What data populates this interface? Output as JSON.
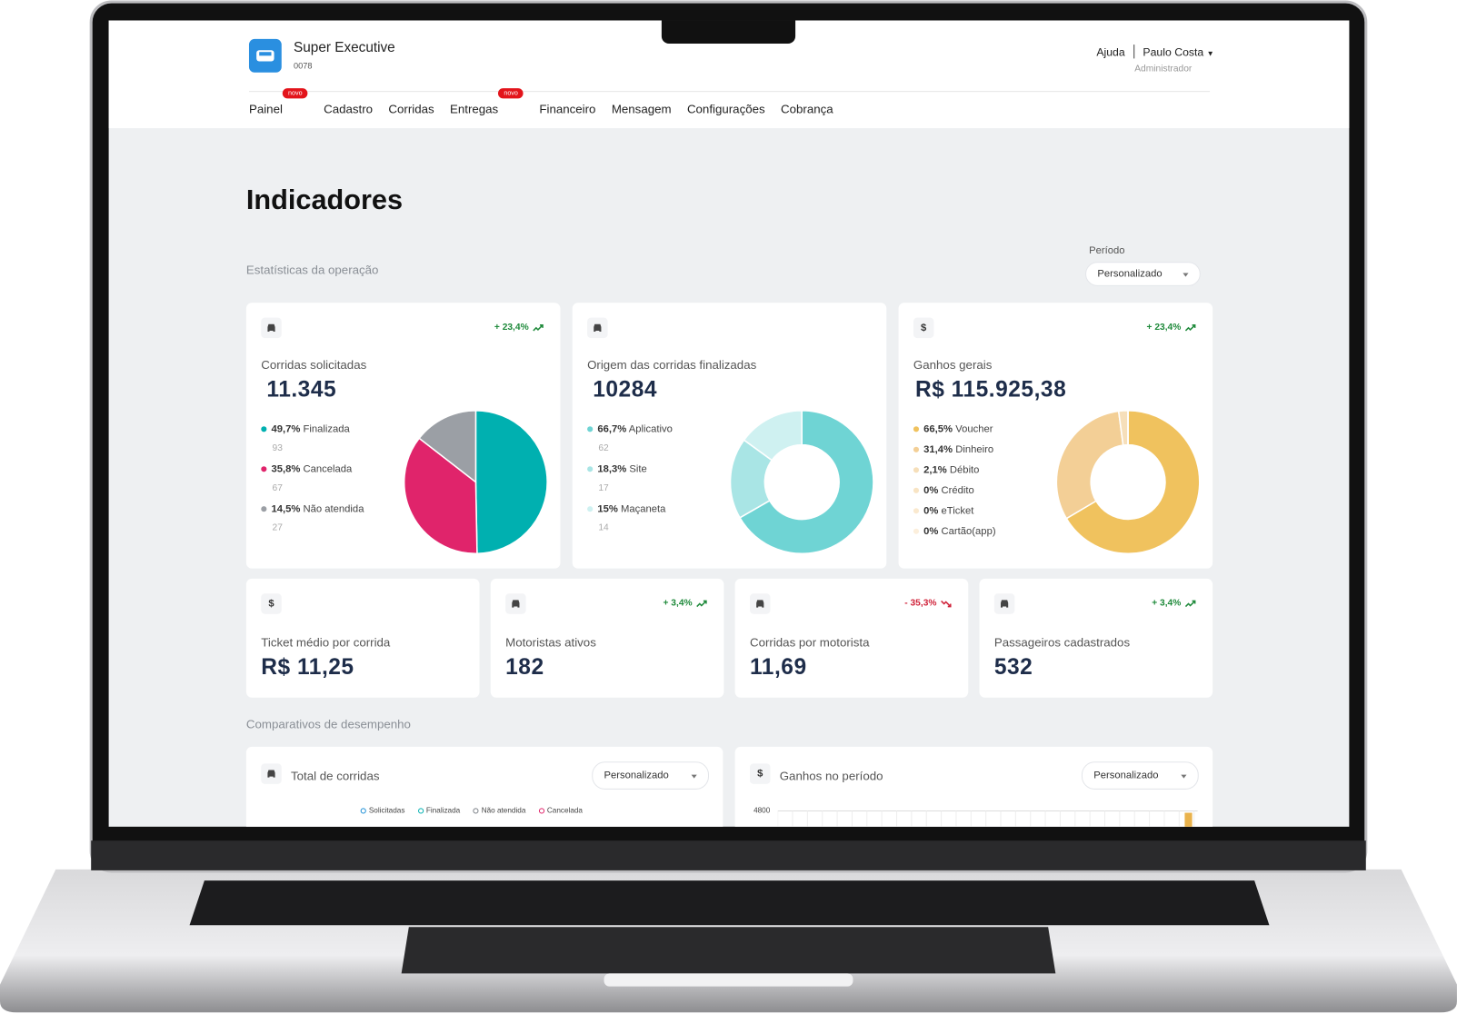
{
  "header": {
    "company": "Super Executive",
    "code": "0078",
    "help": "Ajuda",
    "user": "Paulo Costa",
    "role": "Administrador"
  },
  "nav": [
    {
      "label": "Painel",
      "badge": "novo"
    },
    {
      "label": "Cadastro"
    },
    {
      "label": "Corridas"
    },
    {
      "label": "Entregas",
      "badge": "novo"
    },
    {
      "label": "Financeiro"
    },
    {
      "label": "Mensagem"
    },
    {
      "label": "Configurações"
    },
    {
      "label": "Cobrança"
    }
  ],
  "page_title": "Indicadores",
  "section_stats": "Estatísticas da operação",
  "period": {
    "label": "Período",
    "value": "Personalizado"
  },
  "cards": [
    {
      "trend": {
        "label": "+ 23,4%",
        "color": "#1f8a3b"
      },
      "title": "Corridas solicitadas",
      "value": "11.345",
      "chart": {
        "type": "pie",
        "items": [
          {
            "percent": {
              "value": 49.7,
              "label": "49,7%"
            },
            "name": "Finalizada",
            "count": "93",
            "color": "#00b0b0"
          },
          {
            "percent": {
              "value": 35.8,
              "label": "35,8%"
            },
            "name": "Cancelada",
            "count": "67",
            "color": "#e0246b"
          },
          {
            "percent": {
              "value": 14.5,
              "label": "14,5%"
            },
            "name": "Não atendida",
            "count": "27",
            "color": "#9b9fa5"
          }
        ]
      }
    },
    {
      "title": "Origem das corridas finalizadas",
      "value": "10284",
      "chart": {
        "type": "donut",
        "items": [
          {
            "percent": {
              "value": 66.7,
              "label": "66,7%"
            },
            "name": "Aplicativo",
            "count": "62",
            "color": "#6fd4d4"
          },
          {
            "percent": {
              "value": 18.3,
              "label": "18,3%"
            },
            "name": "Site",
            "count": "17",
            "color": "#a9e5e5"
          },
          {
            "percent": {
              "value": 15,
              "label": "15%"
            },
            "name": "Maçaneta",
            "count": "14",
            "color": "#cff1f1"
          }
        ]
      }
    },
    {
      "symbol": "$",
      "trend": {
        "label": "+ 23,4%",
        "color": "#1f8a3b"
      },
      "title": "Ganhos gerais",
      "value": "R$ 115.925,38",
      "chart": {
        "type": "donut",
        "items": [
          {
            "percent": {
              "value": 66.5,
              "label": "66,5%"
            },
            "name": "Voucher",
            "color": "#f0c25e"
          },
          {
            "percent": {
              "value": 31.4,
              "label": "31,4%"
            },
            "name": "Dinheiro",
            "color": "#f3cf96"
          },
          {
            "percent": {
              "value": 2.1,
              "label": "2,1%"
            },
            "name": "Débito",
            "color": "#f6dfba"
          },
          {
            "percent": {
              "value": 0,
              "label": "0%"
            },
            "name": "Crédito",
            "color": "#f8e4c4"
          },
          {
            "percent": {
              "value": 0,
              "label": "0%"
            },
            "name": "eTicket",
            "color": "#fae9cf"
          },
          {
            "percent": {
              "value": 0,
              "label": "0%"
            },
            "name": "Cartão(app)",
            "color": "#fcefdc"
          }
        ]
      }
    }
  ],
  "small_cards": [
    {
      "symbol": "$",
      "title": "Ticket médio por corrida",
      "value": "R$ 11,25"
    },
    {
      "trend": {
        "label": "+ 3,4%",
        "color": "#1f8a3b"
      },
      "title": "Motoristas ativos",
      "value": "182"
    },
    {
      "trend": {
        "label": "- 35,3%",
        "color": "#d0243b"
      },
      "title": "Corridas por motorista",
      "value": "11,69"
    },
    {
      "trend": {
        "label": "+ 3,4%",
        "color": "#1f8a3b"
      },
      "title": "Passageiros cadastrados",
      "value": "532"
    }
  ],
  "section_compare": "Comparativos de desempenho",
  "bottom": [
    {
      "title": "Total de corridas",
      "select": "Personalizado",
      "legend": [
        {
          "name": "Solicitadas",
          "color": "#1d8fd6"
        },
        {
          "name": "Finalizada",
          "color": "#00b0b0"
        },
        {
          "name": "Não atendida",
          "color": "#7a7f86"
        },
        {
          "name": "Cancelada",
          "color": "#e0246b"
        }
      ]
    },
    {
      "symbol": "$",
      "title": "Ganhos no período",
      "select": "Personalizado",
      "ytick": "4800"
    }
  ]
}
